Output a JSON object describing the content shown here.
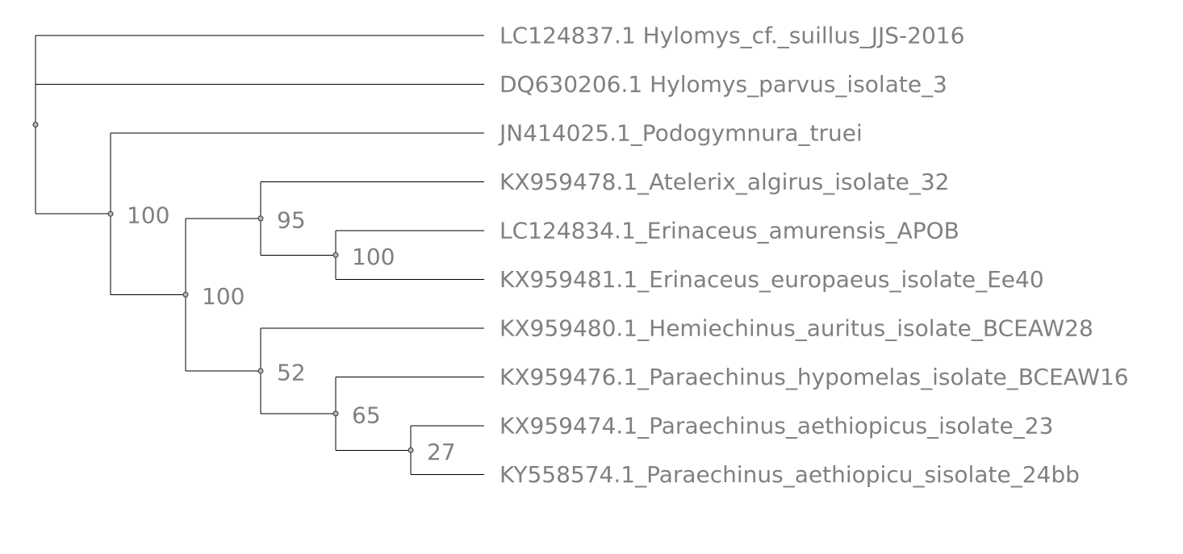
{
  "tree": {
    "children": [
      {
        "leaf": "LC124837.1 Hylomys_cf._suillus_JJS-2016"
      },
      {
        "leaf": "DQ630206.1 Hylomys_parvus_isolate_3"
      },
      {
        "support": "100",
        "children": [
          {
            "leaf": "JN414025.1_Podogymnura_truei"
          },
          {
            "support": "100",
            "children": [
              {
                "support": "95",
                "children": [
                  {
                    "leaf": "KX959478.1_Atelerix_algirus_isolate_32"
                  },
                  {
                    "support": "100",
                    "children": [
                      {
                        "leaf": "LC124834.1_Erinaceus_amurensis_APOB"
                      },
                      {
                        "leaf": "KX959481.1_Erinaceus_europaeus_isolate_Ee40"
                      }
                    ]
                  }
                ]
              },
              {
                "support": "52",
                "children": [
                  {
                    "leaf": "KX959480.1_Hemiechinus_auritus_isolate_BCEAW28"
                  },
                  {
                    "support": "65",
                    "children": [
                      {
                        "leaf": "KX959476.1_Paraechinus_hypomelas_isolate_BCEAW16"
                      },
                      {
                        "support": "27",
                        "children": [
                          {
                            "leaf": "KX959474.1_Paraechinus_aethiopicus_isolate_23"
                          },
                          {
                            "leaf": "KY558574.1_Paraechinus_aethiopicu_sisolate_24bb"
                          }
                        ]
                      }
                    ]
                  }
                ]
              }
            ]
          }
        ]
      }
    ]
  }
}
